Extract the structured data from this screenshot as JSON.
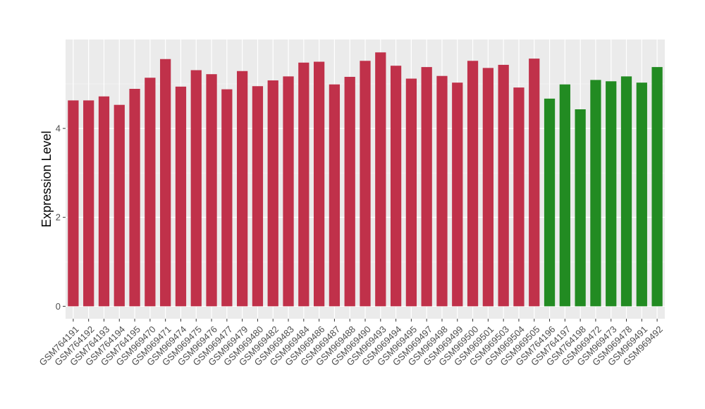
{
  "chart_data": {
    "type": "bar",
    "title": "",
    "xlabel": "",
    "ylabel": "Expression Level",
    "ylim": [
      -0.28,
      6.0
    ],
    "yticks": [
      0,
      2,
      4
    ],
    "grid": true,
    "legend": "none",
    "categories": [
      "GSM764191",
      "GSM764192",
      "GSM764193",
      "GSM764194",
      "GSM764195",
      "GSM969470",
      "GSM969471",
      "GSM969474",
      "GSM969475",
      "GSM969476",
      "GSM969477",
      "GSM969479",
      "GSM969480",
      "GSM969482",
      "GSM969483",
      "GSM969484",
      "GSM969486",
      "GSM969487",
      "GSM969488",
      "GSM969490",
      "GSM969493",
      "GSM969494",
      "GSM969495",
      "GSM969497",
      "GSM969498",
      "GSM969499",
      "GSM969500",
      "GSM969501",
      "GSM969503",
      "GSM969504",
      "GSM969505",
      "GSM764196",
      "GSM764197",
      "GSM764198",
      "GSM969472",
      "GSM969473",
      "GSM969478",
      "GSM969491",
      "GSM969492"
    ],
    "values": [
      4.63,
      4.63,
      4.72,
      4.53,
      4.89,
      5.14,
      5.56,
      4.94,
      5.31,
      5.22,
      4.88,
      5.29,
      4.95,
      5.08,
      5.17,
      5.48,
      5.5,
      4.99,
      5.16,
      5.52,
      5.71,
      5.41,
      5.12,
      5.38,
      5.18,
      5.03,
      5.52,
      5.36,
      5.43,
      4.92,
      5.57,
      4.67,
      4.99,
      4.43,
      5.09,
      5.06,
      5.17,
      5.03,
      5.38
    ],
    "bar_colors": [
      "#c0314a",
      "#c0314a",
      "#c0314a",
      "#c0314a",
      "#c0314a",
      "#c0314a",
      "#c0314a",
      "#c0314a",
      "#c0314a",
      "#c0314a",
      "#c0314a",
      "#c0314a",
      "#c0314a",
      "#c0314a",
      "#c0314a",
      "#c0314a",
      "#c0314a",
      "#c0314a",
      "#c0314a",
      "#c0314a",
      "#c0314a",
      "#c0314a",
      "#c0314a",
      "#c0314a",
      "#c0314a",
      "#c0314a",
      "#c0314a",
      "#c0314a",
      "#c0314a",
      "#c0314a",
      "#c0314a",
      "#228b22",
      "#228b22",
      "#228b22",
      "#228b22",
      "#228b22",
      "#228b22",
      "#228b22",
      "#228b22"
    ],
    "colors": {
      "panel_background": "#ebebeb",
      "grid_major": "#ffffff",
      "grid_minor": "#f5f5f5",
      "tick_text": "#4d4d4d",
      "axis_title": "#000000"
    }
  }
}
